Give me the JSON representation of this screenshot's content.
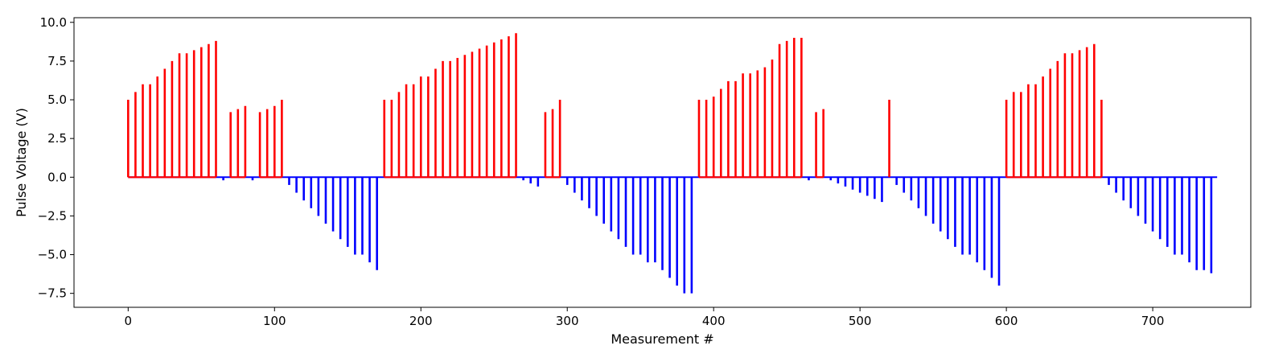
{
  "chart_data": {
    "type": "bar",
    "xlabel": "Measurement #",
    "ylabel": "Pulse Voltage (V)",
    "xlim": [
      -37,
      767
    ],
    "ylim": [
      -8.4,
      10.3
    ],
    "xticks": [
      0,
      100,
      200,
      300,
      400,
      500,
      600,
      700
    ],
    "yticks": [
      -7.5,
      -5.0,
      -2.5,
      0.0,
      2.5,
      5.0,
      7.5,
      10.0
    ],
    "ytick_labels": [
      "−7.5",
      "−5.0",
      "−2.5",
      "0.0",
      "2.5",
      "5.0",
      "7.5",
      "10.0"
    ],
    "grid": false,
    "colors": {
      "positive": "#ff0000",
      "negative": "#0000ff"
    },
    "baseline_range": [
      0,
      744
    ],
    "series": [
      {
        "sign": "positive",
        "x": [
          0,
          5,
          10,
          15,
          20,
          25,
          30,
          35,
          40,
          45,
          50,
          55,
          60,
          70,
          75,
          80,
          90,
          95,
          100,
          105,
          175,
          180,
          185,
          190,
          195,
          200,
          205,
          210,
          215,
          220,
          225,
          230,
          235,
          240,
          245,
          250,
          255,
          260,
          265,
          285,
          290,
          295,
          390,
          395,
          400,
          405,
          410,
          415,
          420,
          425,
          430,
          435,
          440,
          445,
          450,
          455,
          460,
          470,
          475,
          520,
          600,
          605,
          610,
          615,
          620,
          625,
          630,
          635,
          640,
          645,
          650,
          655,
          660,
          665
        ],
        "values": [
          5.0,
          5.5,
          6.0,
          6.0,
          6.5,
          7.0,
          7.5,
          8.0,
          8.0,
          8.2,
          8.4,
          8.6,
          8.8,
          4.2,
          4.4,
          4.6,
          4.2,
          4.4,
          4.6,
          5.0,
          5.0,
          5.0,
          5.5,
          6.0,
          6.0,
          6.5,
          6.5,
          7.0,
          7.5,
          7.5,
          7.7,
          7.9,
          8.1,
          8.3,
          8.5,
          8.7,
          8.9,
          9.1,
          9.3,
          4.2,
          4.4,
          5.0,
          5.0,
          5.0,
          5.2,
          5.7,
          6.2,
          6.2,
          6.7,
          6.7,
          6.9,
          7.1,
          7.6,
          8.6,
          8.8,
          9.0,
          9.0,
          4.2,
          4.4,
          5.0,
          5.0,
          5.5,
          5.5,
          6.0,
          6.0,
          6.5,
          7.0,
          7.5,
          8.0,
          8.0,
          8.2,
          8.4,
          8.6,
          5.0
        ]
      },
      {
        "sign": "negative",
        "x": [
          65,
          85,
          110,
          115,
          120,
          125,
          130,
          135,
          140,
          145,
          150,
          155,
          160,
          165,
          170,
          270,
          275,
          280,
          300,
          305,
          310,
          315,
          320,
          325,
          330,
          335,
          340,
          345,
          350,
          355,
          360,
          365,
          370,
          375,
          380,
          385,
          465,
          480,
          485,
          490,
          495,
          500,
          505,
          510,
          515,
          525,
          530,
          535,
          540,
          545,
          550,
          555,
          560,
          565,
          570,
          575,
          580,
          585,
          590,
          595,
          670,
          675,
          680,
          685,
          690,
          695,
          700,
          705,
          710,
          715,
          720,
          725,
          730,
          735,
          740
        ],
        "values": [
          -0.2,
          -0.2,
          -0.5,
          -1.0,
          -1.5,
          -2.0,
          -2.5,
          -3.0,
          -3.5,
          -4.0,
          -4.5,
          -5.0,
          -5.0,
          -5.5,
          -6.0,
          -0.2,
          -0.4,
          -0.6,
          -0.5,
          -1.0,
          -1.5,
          -2.0,
          -2.5,
          -3.0,
          -3.5,
          -4.0,
          -4.5,
          -5.0,
          -5.0,
          -5.5,
          -5.5,
          -6.0,
          -6.5,
          -7.0,
          -7.5,
          -7.5,
          -0.2,
          -0.2,
          -0.4,
          -0.6,
          -0.8,
          -1.0,
          -1.2,
          -1.4,
          -1.6,
          -0.5,
          -1.0,
          -1.5,
          -2.0,
          -2.5,
          -3.0,
          -3.5,
          -4.0,
          -4.5,
          -5.0,
          -5.0,
          -5.5,
          -6.0,
          -6.5,
          -7.0,
          -0.5,
          -1.0,
          -1.5,
          -2.0,
          -2.5,
          -3.0,
          -3.5,
          -4.0,
          -4.5,
          -5.0,
          -5.0,
          -5.5,
          -6.0,
          -6.0,
          -6.2
        ]
      }
    ]
  }
}
